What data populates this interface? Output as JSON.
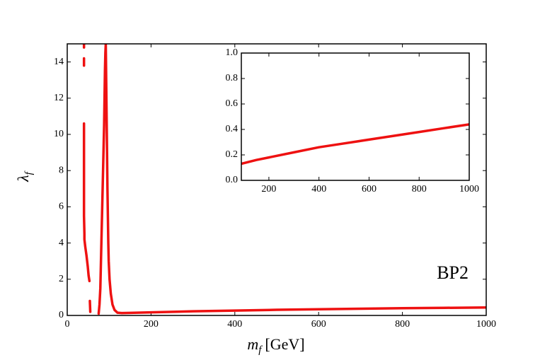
{
  "chart_data": [
    {
      "type": "line",
      "x_label": {
        "symbol": "m",
        "subscript": "f",
        "unit": "[GeV]"
      },
      "y_label": {
        "symbol": "λ",
        "subscript": "f"
      },
      "annotation": "BP2",
      "xlim": [
        0,
        1000
      ],
      "xticks": [
        0,
        200,
        400,
        600,
        800,
        1000
      ],
      "ylim": [
        0,
        15
      ],
      "yticks": [
        0,
        2,
        4,
        6,
        8,
        10,
        12,
        14
      ],
      "series": [
        {
          "color": "#ee1111",
          "x": [
            40,
            40,
            null,
            40,
            40,
            null,
            40,
            40,
            40,
            40,
            40,
            40,
            40,
            40,
            41,
            41,
            43,
            46,
            49,
            51,
            53,
            null,
            54,
            55,
            null,
            75,
            77,
            79,
            80,
            81,
            82,
            83,
            84,
            85,
            86,
            87,
            88,
            89,
            90,
            91,
            92,
            93,
            94,
            95,
            96,
            97,
            98,
            99,
            101,
            104,
            108,
            113,
            120,
            130,
            150,
            200,
            300,
            400,
            500,
            600,
            700,
            800,
            900,
            1000
          ],
          "values": [
            15,
            14.8,
            null,
            14.2,
            13.8,
            null,
            10.6,
            10.2,
            9,
            8.5,
            8,
            7,
            6,
            5.5,
            4.5,
            4.2,
            3.8,
            3.3,
            2.7,
            2.2,
            1.9,
            null,
            0.8,
            0.2,
            null,
            0.1,
            0.6,
            1.5,
            2.5,
            3.5,
            4.5,
            5.5,
            6.5,
            7.5,
            8.5,
            9.5,
            10.5,
            12,
            13.5,
            14.5,
            15,
            13,
            11,
            9,
            7,
            5.5,
            4,
            3,
            2,
            1.2,
            0.6,
            0.3,
            0.15,
            0.13,
            0.14,
            0.17,
            0.23,
            0.27,
            0.31,
            0.34,
            0.37,
            0.4,
            0.42,
            0.44
          ]
        }
      ]
    },
    {
      "type": "line",
      "xlim": [
        90,
        1000
      ],
      "xticks": [
        200,
        400,
        600,
        800,
        1000
      ],
      "ylim": [
        0,
        1
      ],
      "yticks": [
        {
          "value": 0,
          "label": "0.0"
        },
        0.2,
        0.4,
        0.6,
        0.8,
        {
          "value": 1,
          "label": "1.0"
        }
      ],
      "series": [
        {
          "color": "#ee1111",
          "x": [
            90,
            150,
            200,
            300,
            400,
            500,
            600,
            700,
            800,
            900,
            1000
          ],
          "values": [
            0.13,
            0.16,
            0.18,
            0.22,
            0.26,
            0.29,
            0.32,
            0.35,
            0.38,
            0.41,
            0.44
          ]
        }
      ]
    }
  ]
}
